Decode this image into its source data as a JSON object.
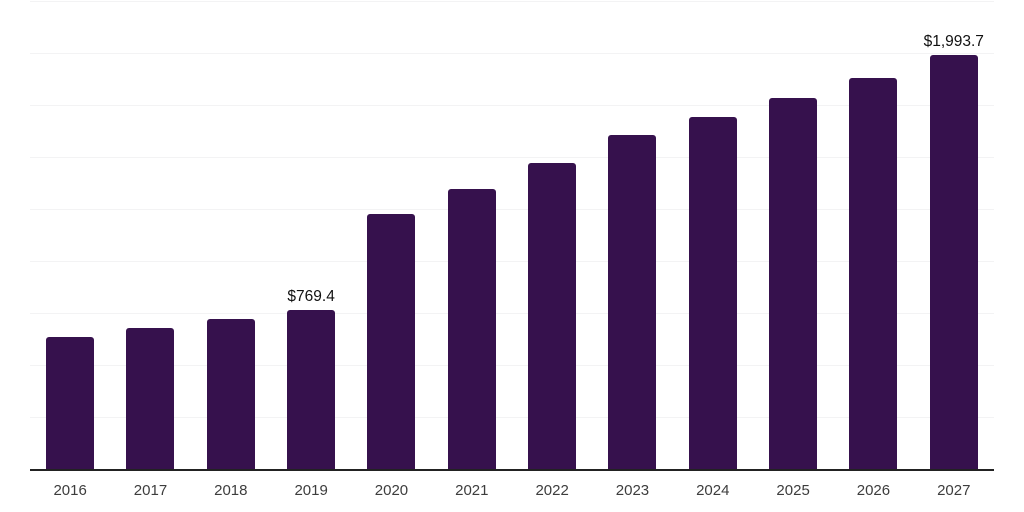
{
  "chart_data": {
    "type": "bar",
    "title": "",
    "xlabel": "",
    "ylabel": "",
    "categories": [
      "2016",
      "2017",
      "2018",
      "2019",
      "2020",
      "2021",
      "2022",
      "2023",
      "2024",
      "2025",
      "2026",
      "2027"
    ],
    "values": [
      640,
      684,
      725,
      769.4,
      1229,
      1352,
      1477,
      1611,
      1698,
      1789,
      1884,
      1993.7
    ],
    "bar_labels": [
      "",
      "",
      "",
      "$769.4",
      "",
      "",
      "",
      "",
      "",
      "",
      "",
      "$1,993.7"
    ],
    "ylim": [
      0,
      2250
    ],
    "gridline_step": 250,
    "grid": true,
    "legend": false,
    "y_axis_ticks_visible": false,
    "colors": {
      "bar": "#36114D",
      "gridline": "#f3f3f4",
      "axis": "#222222",
      "value_label": "#111111",
      "tick_label": "#3d3d3d",
      "background": "#ffffff"
    }
  }
}
